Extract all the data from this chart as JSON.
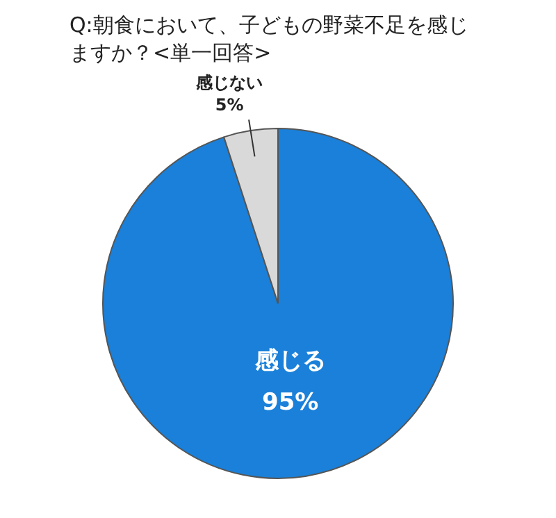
{
  "chart_data": {
    "type": "pie",
    "title": "Q:朝食において、子どもの野菜不足を感じますか？<単一回答>",
    "categories": [
      "感じる",
      "感じない"
    ],
    "values": [
      95,
      5
    ],
    "colors": [
      "#1a80d9",
      "#d9d9d9"
    ],
    "value_labels": [
      "95%",
      "5%"
    ],
    "legend": false
  }
}
